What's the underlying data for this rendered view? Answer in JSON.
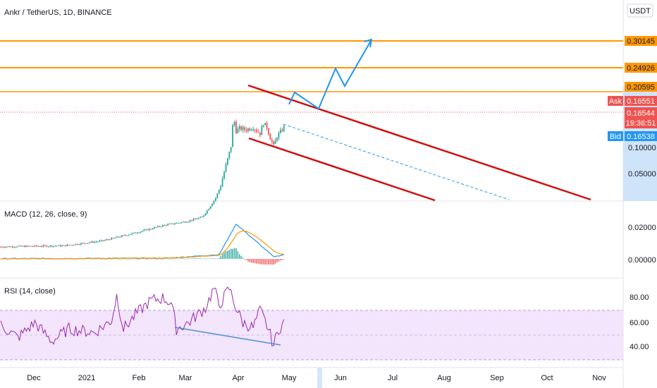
{
  "header": {
    "symbol_title": "Ankr / TetherUS, 1D, BINANCE",
    "currency_button": "USDT"
  },
  "price_pane": {
    "tick_labels": [
      "0.10000",
      "0.05000"
    ],
    "horizontal_levels": [
      {
        "label": "0.30145",
        "value": 0.30145,
        "color": "#ff9800"
      },
      {
        "label": "0.24926",
        "value": 0.24926,
        "color": "#ff9800"
      },
      {
        "label": "0.20595",
        "value": 0.20595,
        "color": "#ff9800"
      }
    ],
    "ask": {
      "tag": "Ask",
      "value": "0.16551"
    },
    "last": {
      "value": "0.16544",
      "countdown": "19:36:51"
    },
    "bid": {
      "tag": "Bid",
      "value": "0.16538"
    }
  },
  "macd_pane": {
    "title": "MACD (12, 26, close, 9)",
    "tick_labels": [
      "0.02000",
      "0.00000"
    ]
  },
  "rsi_pane": {
    "title": "RSI (14, close)",
    "tick_labels": [
      "80.00",
      "60.00",
      "40.00"
    ]
  },
  "time_axis": {
    "labels": [
      "Dec",
      "2021",
      "Feb",
      "Mar",
      "Apr",
      "May",
      "Jun",
      "Jul",
      "Aug",
      "Sep",
      "Oct",
      "Nov"
    ]
  },
  "colors": {
    "up": "#26a69a",
    "down": "#ef5350",
    "level_line": "#ff9800",
    "channel": "#cc1111",
    "projection": "#2196f3",
    "macd_line": "#2196f3",
    "signal_line": "#ff9800",
    "rsi_line": "#9c27b0",
    "rsi_band": "#f3e5fb"
  },
  "chart_data": [
    {
      "type": "candlestick",
      "title": "Ankr / TetherUS, 1D, BINANCE",
      "y_scale": "log",
      "x_range": [
        "2020-11-10",
        "2021-11-15"
      ],
      "close_approx": [
        {
          "date": "2020-11-15",
          "close": 0.0068
        },
        {
          "date": "2020-12-15",
          "close": 0.0072
        },
        {
          "date": "2021-01-15",
          "close": 0.0095
        },
        {
          "date": "2021-02-15",
          "close": 0.0135
        },
        {
          "date": "2021-03-01",
          "close": 0.02
        },
        {
          "date": "2021-03-15",
          "close": 0.04
        },
        {
          "date": "2021-03-25",
          "close": 0.13
        },
        {
          "date": "2021-04-01",
          "close": 0.17
        },
        {
          "date": "2021-04-10",
          "close": 0.165
        },
        {
          "date": "2021-04-16",
          "close": 0.18
        },
        {
          "date": "2021-04-23",
          "close": 0.1
        },
        {
          "date": "2021-04-28",
          "close": 0.16544
        }
      ],
      "levels": [
        0.30145,
        0.24926,
        0.20595
      ],
      "ask": 0.16551,
      "last": 0.16544,
      "bid": 0.16538
    },
    {
      "type": "line",
      "title": "MACD (12, 26, close, 9)",
      "series": [
        {
          "values_approx": [
            0.0,
            0.0003,
            0.0005,
            0.001,
            0.003,
            0.01,
            0.033,
            0.028,
            0.018,
            0.005,
            0.001
          ]
        },
        {
          "values_approx": [
            0.0,
            0.0002,
            0.0004,
            0.0008,
            0.002,
            0.007,
            0.025,
            0.029,
            0.022,
            0.01,
            0.004
          ]
        }
      ]
    },
    {
      "type": "line",
      "title": "RSI (14, close)",
      "band": [
        30,
        70
      ],
      "series": [
        {
          "values_approx": [
            55,
            48,
            60,
            52,
            63,
            58,
            70,
            80,
            56,
            66,
            88,
            74,
            60,
            50,
            42,
            60
          ]
        }
      ]
    }
  ]
}
